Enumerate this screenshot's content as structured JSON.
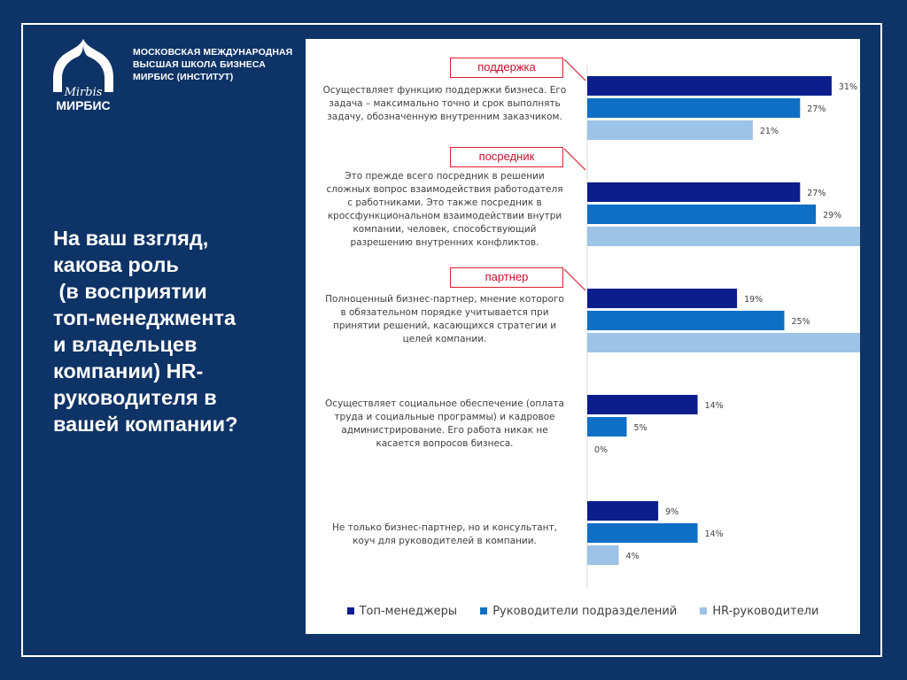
{
  "school": {
    "line1": "МОСКОВСКАЯ МЕЖДУНАРОДНАЯ",
    "line2": "ВЫСШАЯ ШКОЛА БИЗНЕСА",
    "line3": "МИРБИС (ИНСТИТУТ)",
    "logo_script": "Mirbis",
    "logo_text": "МИРБИС"
  },
  "question": "На ваш взгляд,\nкакова роль\n (в восприятии\nтоп-менеджмента\nи владельцев\nкомпании) HR-\nруководителя в\nвашей компании?",
  "colors": {
    "background": "#0e3366",
    "series_top": "#0b1e8c",
    "series_dept": "#0f6fc4",
    "series_hr": "#9dc3e6",
    "tag_border": "#d9232e"
  },
  "chart_data": {
    "type": "bar",
    "orientation": "horizontal",
    "categories": [
      "Осуществляет функцию поддержки бизнеса. Его задача – максимально точно и срок выполнять задачу, обозначенную внутренним заказчиком.",
      "Это прежде всего посредник в решении сложных вопрос взаимодействия работодателя с работниками. Это также посредник в кроссфункциональном взаимодействии внутри компании, человек, способствующий разрешению внутренних конфликтов.",
      "Полноценный бизнес-партнер, мнение которого в обязательном порядке учитывается при принятии решений, касающихся стратегии и целей компании.",
      "Осуществляет социальное обеспечение (оплата труда и социальные программы) и кадровое администрирование. Его работа никак не касается вопросов бизнеса.",
      "Не только бизнес-партнер, но и консультант, коуч для руководителей в компании."
    ],
    "category_lines": [
      [
        "Осуществляет функцию поддержки бизнеса. Его",
        "задача – максимально точно и срок выполнять",
        "задачу, обозначенную внутренним заказчиком."
      ],
      [
        "Это прежде всего посредник в решении",
        "сложных вопрос взаимодействия работодателя",
        "с работниками. Это также посредник в",
        "кроссфункциональном взаимодействии внутри",
        "компании, человек, способствующий",
        "разрешению внутренних конфликтов."
      ],
      [
        "Полноценный бизнес-партнер, мнение которого",
        "в обязательном порядке учитывается при",
        "принятии решений, касающихся стратегии и",
        "целей компании."
      ],
      [
        "Осуществляет социальное обеспечение (оплата",
        "труда и социальные программы) и кадровое",
        "администрирование. Его работа никак не",
        "касается вопросов бизнеса."
      ],
      [
        "Не только бизнес-партнер, но и консультант,",
        "коуч для руководителей в компании."
      ]
    ],
    "series": [
      {
        "name": "Топ-менеджеры",
        "values": [
          31,
          27,
          19,
          14,
          9
        ],
        "labels": [
          "31%",
          "27%",
          "19%",
          "14%",
          "9%"
        ]
      },
      {
        "name": "Руководители подразделений",
        "values": [
          27,
          29,
          25,
          5,
          14
        ],
        "labels": [
          "27%",
          "29%",
          "25%",
          "5%",
          "14%"
        ]
      },
      {
        "name": "HR-руководители",
        "values": [
          21,
          36,
          39,
          0,
          4
        ],
        "labels": [
          "21%",
          "36%",
          "39%",
          "0%",
          "4%"
        ]
      }
    ],
    "annotations": [
      "поддержка",
      "посредник",
      "партнер"
    ],
    "legend_position": "bottom",
    "grid": false
  }
}
